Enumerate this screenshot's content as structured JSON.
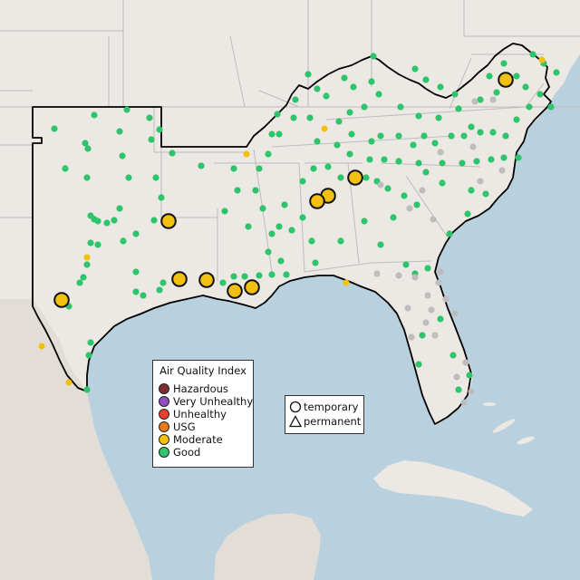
{
  "map": {
    "colors": {
      "ocean": "#b9d0df",
      "land": "#ece8e3",
      "land_south": "#e2ddd6",
      "state_lines": "#bdbdbd",
      "region_outline": "#000000",
      "gray_station": "#bdbdbd"
    }
  },
  "legend": {
    "title": "Air Quality Index",
    "items": [
      {
        "label": "Hazardous",
        "color": "#7e2e2e"
      },
      {
        "label": "Very Unhealthy",
        "color": "#8f4fbf"
      },
      {
        "label": "Unhealthy",
        "color": "#e8412c"
      },
      {
        "label": "USG",
        "color": "#e87a18"
      },
      {
        "label": "Moderate",
        "color": "#f2c011"
      },
      {
        "label": "Good",
        "color": "#2ec46b"
      }
    ]
  },
  "monitor_legend": {
    "items": [
      {
        "label": "temporary",
        "icon": "circle-icon"
      },
      {
        "label": "permanent",
        "icon": "triangle-icon"
      }
    ]
  }
}
